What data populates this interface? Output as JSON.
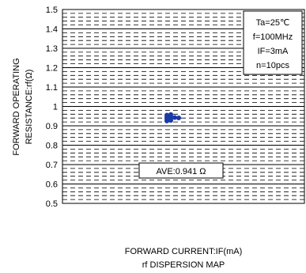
{
  "chart_data": {
    "type": "scatter",
    "title": "",
    "subtitle": "rf DISPERSION MAP",
    "xlabel": "FORWARD CURRENT:IF(mA)",
    "ylabel_line1": "FORWARD OPERATING",
    "ylabel_line2": "RESISTANCE:rf(Ω)",
    "ylim": [
      0.5,
      1.5
    ],
    "ytick_labels": [
      "0.5",
      "0.6",
      "0.7",
      "0.8",
      "0.9",
      "1",
      "1.1",
      "1.2",
      "1.3",
      "1.4",
      "1.5"
    ],
    "grid": true,
    "legend_placement": "none",
    "conditions": [
      "Ta=25℃",
      "f=100MHz",
      "IF=3mA",
      "n=10pcs"
    ],
    "average_label": "AVE:0.941 Ω",
    "point_color": "#1a3aa6",
    "points": [
      {
        "x": 0,
        "y": 0.955
      },
      {
        "x": 0,
        "y": 0.945
      },
      {
        "x": 0,
        "y": 0.935
      },
      {
        "x": 0,
        "y": 0.925
      },
      {
        "x": 1,
        "y": 0.958
      },
      {
        "x": 1,
        "y": 0.948
      },
      {
        "x": 1,
        "y": 0.938
      },
      {
        "x": 1,
        "y": 0.928
      },
      {
        "x": 2,
        "y": 0.943
      },
      {
        "x": 3,
        "y": 0.941
      }
    ]
  }
}
